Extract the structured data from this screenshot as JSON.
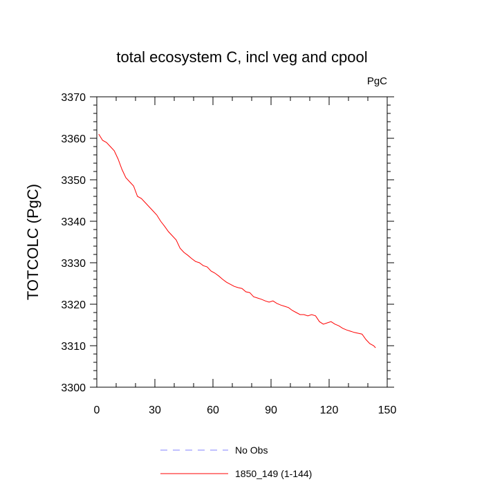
{
  "chart_data": {
    "type": "line",
    "title": "total ecosystem C, incl veg and cpool",
    "units_label": "PgC",
    "xlabel": "",
    "ylabel": "TOTCOLC  (PgC)",
    "xlim": [
      0,
      150
    ],
    "ylim": [
      3300,
      3370
    ],
    "xticks": [
      0,
      30,
      60,
      90,
      120,
      150
    ],
    "yticks": [
      3300,
      3310,
      3320,
      3330,
      3340,
      3350,
      3360,
      3370
    ],
    "grid": false,
    "legend_position": "bottom",
    "series": [
      {
        "name": "No Obs",
        "color": "#8080ff",
        "dash": "dashed",
        "x": [],
        "y": []
      },
      {
        "name": "1850_149 (1-144)",
        "color": "#ff0000",
        "dash": "solid",
        "x": [
          1,
          3,
          5,
          7,
          9,
          11,
          13,
          15,
          17,
          19,
          21,
          23,
          25,
          27,
          29,
          31,
          33,
          35,
          37,
          39,
          41,
          43,
          45,
          47,
          49,
          51,
          53,
          55,
          57,
          59,
          61,
          63,
          65,
          67,
          69,
          71,
          73,
          75,
          77,
          79,
          81,
          83,
          85,
          87,
          89,
          91,
          93,
          95,
          97,
          99,
          101,
          103,
          105,
          107,
          109,
          111,
          113,
          115,
          117,
          119,
          121,
          123,
          125,
          127,
          129,
          131,
          133,
          135,
          137,
          139,
          141,
          143,
          144
        ],
        "y": [
          3361,
          3359.5,
          3359,
          3358,
          3357,
          3355,
          3352.5,
          3350.5,
          3349.5,
          3348.5,
          3346,
          3345.5,
          3344.5,
          3343.5,
          3342.5,
          3341.5,
          3340,
          3338.8,
          3337.5,
          3336.5,
          3335.5,
          3333.5,
          3332.5,
          3331.8,
          3331,
          3330.3,
          3330,
          3329.3,
          3329,
          3328,
          3327.5,
          3326.8,
          3326,
          3325.3,
          3324.8,
          3324.3,
          3324,
          3323.8,
          3323,
          3322.8,
          3321.8,
          3321.5,
          3321.2,
          3320.8,
          3320.5,
          3320.8,
          3320.2,
          3319.8,
          3319.5,
          3319.2,
          3318.5,
          3318,
          3317.5,
          3317.5,
          3317.2,
          3317.5,
          3317.2,
          3315.8,
          3315.2,
          3315.5,
          3315.8,
          3315.2,
          3314.8,
          3314.2,
          3313.8,
          3313.5,
          3313.2,
          3313,
          3312.8,
          3311.5,
          3310.5,
          3310,
          3309.5
        ]
      }
    ]
  }
}
